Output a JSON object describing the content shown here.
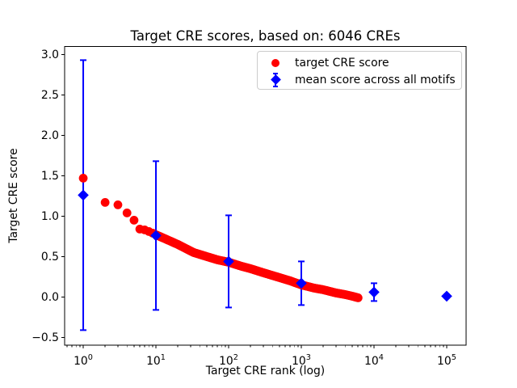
{
  "chart_data": {
    "type": "scatter",
    "title": "Target CRE scores, based on: 6046 CREs",
    "xlabel": "Target CRE rank (log)",
    "ylabel": "Target CRE score",
    "x_scale": "log",
    "xlim_log10": [
      -0.256,
      5.267
    ],
    "ylim": [
      -0.596,
      3.099
    ],
    "x_tick_exponents": [
      0,
      1,
      2,
      3,
      4,
      5
    ],
    "y_ticks": [
      -0.5,
      0.0,
      0.5,
      1.0,
      1.5,
      2.0,
      2.5,
      3.0
    ],
    "grid": false,
    "n_cres": 6046,
    "legend": {
      "position": "upper right",
      "entries": [
        {
          "label": "target CRE score",
          "marker": "circle",
          "color": "#ff0000"
        },
        {
          "label": "mean score across all motifs",
          "marker": "diamond-errorbar",
          "color": "#0000ff"
        }
      ]
    },
    "series": [
      {
        "name": "target CRE score",
        "type": "scatter",
        "marker": "circle",
        "color": "#ff0000",
        "n_points": 6046,
        "keypoints_rank_score": [
          [
            1,
            1.47
          ],
          [
            2,
            1.17
          ],
          [
            3,
            1.14
          ],
          [
            4,
            1.04
          ],
          [
            5,
            0.95
          ],
          [
            6,
            0.84
          ],
          [
            7,
            0.83
          ],
          [
            8,
            0.81
          ],
          [
            9,
            0.79
          ],
          [
            10,
            0.77
          ],
          [
            15,
            0.7
          ],
          [
            20,
            0.65
          ],
          [
            33,
            0.55
          ],
          [
            50,
            0.5
          ],
          [
            70,
            0.46
          ],
          [
            100,
            0.43
          ],
          [
            150,
            0.38
          ],
          [
            200,
            0.35
          ],
          [
            300,
            0.3
          ],
          [
            500,
            0.24
          ],
          [
            700,
            0.2
          ],
          [
            1000,
            0.15
          ],
          [
            1500,
            0.11
          ],
          [
            2000,
            0.09
          ],
          [
            3000,
            0.05
          ],
          [
            4000,
            0.03
          ],
          [
            5000,
            0.01
          ],
          [
            6046,
            -0.01
          ]
        ]
      },
      {
        "name": "mean score across all motifs",
        "type": "errorbar",
        "marker": "diamond",
        "color": "#0000ff",
        "points": [
          {
            "x": 1,
            "mean": 1.26,
            "std": 1.67
          },
          {
            "x": 10,
            "mean": 0.76,
            "std": 0.92
          },
          {
            "x": 100,
            "mean": 0.44,
            "std": 0.57
          },
          {
            "x": 1000,
            "mean": 0.17,
            "std": 0.27
          },
          {
            "x": 10000,
            "mean": 0.06,
            "std": 0.11
          },
          {
            "x": 100000,
            "mean": 0.01,
            "std": 0.02
          }
        ]
      }
    ]
  }
}
